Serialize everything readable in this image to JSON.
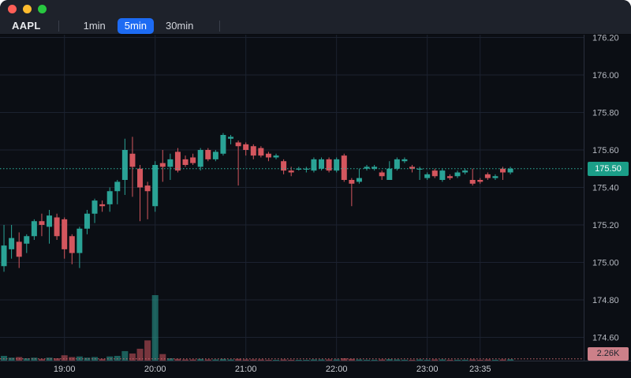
{
  "window": {
    "controls": [
      {
        "name": "close",
        "color": "#ff5f57"
      },
      {
        "name": "minimize",
        "color": "#febc2e"
      },
      {
        "name": "zoom",
        "color": "#28c840"
      }
    ]
  },
  "toolbar": {
    "symbol": "AAPL",
    "timeframes": [
      {
        "label": "1min",
        "active": false
      },
      {
        "label": "5min",
        "active": true
      },
      {
        "label": "30min",
        "active": false
      }
    ]
  },
  "colors": {
    "accent_blue": "#1d6bf3",
    "up": "#2aa396",
    "down": "#d4565e",
    "grid": "#1c2230",
    "axis_border": "#2a2f3d",
    "axis_text": "#b6bac2",
    "time_text": "#c8cbd1",
    "price_line": "#2fb3a0",
    "volume_line": "#c96a72",
    "price_badge_bg": "#1b9e88",
    "volume_badge_bg": "#cc8089",
    "header_bg": "#1e222b",
    "chart_bg": "#0b0e14"
  },
  "chart_data": {
    "type": "candlestick",
    "symbol": "AAPL",
    "interval": "5min",
    "title": "AAPL 5-minute candlestick chart with volume",
    "last_price": 175.5,
    "last_price_label": "175.50",
    "last_volume": 2260,
    "last_volume_label": "2.26K",
    "volume_max_estimate": 110000,
    "y_axis": {
      "side": "right",
      "ticks": [
        {
          "value": 176.2,
          "label": "176.20"
        },
        {
          "value": 176.0,
          "label": "176.00"
        },
        {
          "value": 175.8,
          "label": "175.80"
        },
        {
          "value": 175.6,
          "label": "175.60"
        },
        {
          "value": 175.4,
          "label": "175.40"
        },
        {
          "value": 175.2,
          "label": "175.20"
        },
        {
          "value": 175.0,
          "label": "175.00"
        },
        {
          "value": 174.8,
          "label": "174.80"
        },
        {
          "value": 174.6,
          "label": "174.60"
        }
      ]
    },
    "x_axis": {
      "ticks": [
        "19:00",
        "20:00",
        "21:00",
        "22:00",
        "23:00",
        "23:35"
      ]
    },
    "candles": [
      {
        "t": "18:15",
        "o": 175.02,
        "h": 175.04,
        "l": 174.96,
        "c": 174.97,
        "v": 4000
      },
      {
        "t": "18:20",
        "o": 174.98,
        "h": 175.2,
        "l": 174.95,
        "c": 175.09,
        "v": 8000
      },
      {
        "t": "18:25",
        "o": 175.07,
        "h": 175.2,
        "l": 175.02,
        "c": 175.13,
        "v": 5000
      },
      {
        "t": "18:30",
        "o": 175.11,
        "h": 175.16,
        "l": 174.97,
        "c": 175.03,
        "v": 6000
      },
      {
        "t": "18:35",
        "o": 175.1,
        "h": 175.15,
        "l": 175.05,
        "c": 175.14,
        "v": 4000
      },
      {
        "t": "18:40",
        "o": 175.14,
        "h": 175.23,
        "l": 175.12,
        "c": 175.22,
        "v": 5000
      },
      {
        "t": "18:45",
        "o": 175.22,
        "h": 175.26,
        "l": 175.14,
        "c": 175.2,
        "v": 3000
      },
      {
        "t": "18:50",
        "o": 175.19,
        "h": 175.28,
        "l": 175.1,
        "c": 175.25,
        "v": 5000
      },
      {
        "t": "18:55",
        "o": 175.24,
        "h": 175.26,
        "l": 175.12,
        "c": 175.14,
        "v": 4000
      },
      {
        "t": "19:00",
        "o": 175.23,
        "h": 175.24,
        "l": 175.02,
        "c": 175.07,
        "v": 9000
      },
      {
        "t": "19:05",
        "o": 175.14,
        "h": 175.15,
        "l": 174.99,
        "c": 175.05,
        "v": 6000
      },
      {
        "t": "19:10",
        "o": 175.05,
        "h": 175.19,
        "l": 174.97,
        "c": 175.18,
        "v": 7000
      },
      {
        "t": "19:15",
        "o": 175.18,
        "h": 175.28,
        "l": 175.15,
        "c": 175.26,
        "v": 5000
      },
      {
        "t": "19:20",
        "o": 175.26,
        "h": 175.34,
        "l": 175.21,
        "c": 175.33,
        "v": 6000
      },
      {
        "t": "19:25",
        "o": 175.31,
        "h": 175.33,
        "l": 175.27,
        "c": 175.3,
        "v": 3000
      },
      {
        "t": "19:30",
        "o": 175.31,
        "h": 175.4,
        "l": 175.27,
        "c": 175.38,
        "v": 7000
      },
      {
        "t": "19:35",
        "o": 175.38,
        "h": 175.44,
        "l": 175.31,
        "c": 175.43,
        "v": 8000
      },
      {
        "t": "19:40",
        "o": 175.44,
        "h": 175.66,
        "l": 175.36,
        "c": 175.6,
        "v": 16000
      },
      {
        "t": "19:45",
        "o": 175.58,
        "h": 175.67,
        "l": 175.35,
        "c": 175.51,
        "v": 12000
      },
      {
        "t": "19:50",
        "o": 175.5,
        "h": 175.52,
        "l": 175.22,
        "c": 175.4,
        "v": 20000
      },
      {
        "t": "19:55",
        "o": 175.41,
        "h": 175.43,
        "l": 175.23,
        "c": 175.38,
        "v": 34000
      },
      {
        "t": "20:00",
        "o": 175.3,
        "h": 175.54,
        "l": 175.27,
        "c": 175.52,
        "v": 110000
      },
      {
        "t": "20:05",
        "o": 175.53,
        "h": 175.6,
        "l": 175.43,
        "c": 175.51,
        "v": 11000
      },
      {
        "t": "20:10",
        "o": 175.51,
        "h": 175.58,
        "l": 175.44,
        "c": 175.55,
        "v": 4000
      },
      {
        "t": "20:15",
        "o": 175.59,
        "h": 175.61,
        "l": 175.48,
        "c": 175.49,
        "v": 3000
      },
      {
        "t": "20:20",
        "o": 175.55,
        "h": 175.57,
        "l": 175.51,
        "c": 175.52,
        "v": 2000
      },
      {
        "t": "20:25",
        "o": 175.56,
        "h": 175.58,
        "l": 175.52,
        "c": 175.53,
        "v": 2000
      },
      {
        "t": "20:30",
        "o": 175.51,
        "h": 175.61,
        "l": 175.49,
        "c": 175.6,
        "v": 3000
      },
      {
        "t": "20:35",
        "o": 175.6,
        "h": 175.61,
        "l": 175.54,
        "c": 175.55,
        "v": 2000
      },
      {
        "t": "20:40",
        "o": 175.55,
        "h": 175.6,
        "l": 175.54,
        "c": 175.59,
        "v": 2000
      },
      {
        "t": "20:45",
        "o": 175.58,
        "h": 175.69,
        "l": 175.57,
        "c": 175.68,
        "v": 3000
      },
      {
        "t": "20:50",
        "o": 175.66,
        "h": 175.68,
        "l": 175.63,
        "c": 175.67,
        "v": 2000
      },
      {
        "t": "20:55",
        "o": 175.64,
        "h": 175.65,
        "l": 175.41,
        "c": 175.62,
        "v": 3000
      },
      {
        "t": "21:00",
        "o": 175.63,
        "h": 175.64,
        "l": 175.57,
        "c": 175.6,
        "v": 2000
      },
      {
        "t": "21:05",
        "o": 175.62,
        "h": 175.63,
        "l": 175.55,
        "c": 175.57,
        "v": 2000
      },
      {
        "t": "21:10",
        "o": 175.61,
        "h": 175.62,
        "l": 175.56,
        "c": 175.57,
        "v": 2000
      },
      {
        "t": "21:15",
        "o": 175.58,
        "h": 175.59,
        "l": 175.54,
        "c": 175.56,
        "v": 1500
      },
      {
        "t": "21:20",
        "o": 175.56,
        "h": 175.58,
        "l": 175.55,
        "c": 175.57,
        "v": 1000
      },
      {
        "t": "21:25",
        "o": 175.54,
        "h": 175.55,
        "l": 175.47,
        "c": 175.49,
        "v": 2000
      },
      {
        "t": "21:30",
        "o": 175.49,
        "h": 175.51,
        "l": 175.46,
        "c": 175.48,
        "v": 1500
      },
      {
        "t": "21:35",
        "o": 175.5,
        "h": 175.51,
        "l": 175.49,
        "c": 175.5,
        "v": 1000
      },
      {
        "t": "21:40",
        "o": 175.5,
        "h": 175.51,
        "l": 175.48,
        "c": 175.5,
        "v": 1000
      },
      {
        "t": "21:45",
        "o": 175.49,
        "h": 175.56,
        "l": 175.48,
        "c": 175.55,
        "v": 2000
      },
      {
        "t": "21:50",
        "o": 175.5,
        "h": 175.56,
        "l": 175.49,
        "c": 175.55,
        "v": 2000
      },
      {
        "t": "21:55",
        "o": 175.55,
        "h": 175.56,
        "l": 175.48,
        "c": 175.49,
        "v": 2000
      },
      {
        "t": "22:00",
        "o": 175.49,
        "h": 175.56,
        "l": 175.48,
        "c": 175.55,
        "v": 2000
      },
      {
        "t": "22:05",
        "o": 175.57,
        "h": 175.58,
        "l": 175.43,
        "c": 175.44,
        "v": 4000
      },
      {
        "t": "22:10",
        "o": 175.44,
        "h": 175.45,
        "l": 175.3,
        "c": 175.42,
        "v": 3000
      },
      {
        "t": "22:15",
        "o": 175.43,
        "h": 175.5,
        "l": 175.42,
        "c": 175.45,
        "v": 2000
      },
      {
        "t": "22:20",
        "o": 175.5,
        "h": 175.52,
        "l": 175.49,
        "c": 175.51,
        "v": 1500
      },
      {
        "t": "22:25",
        "o": 175.5,
        "h": 175.52,
        "l": 175.49,
        "c": 175.51,
        "v": 1500
      },
      {
        "t": "22:30",
        "o": 175.48,
        "h": 175.49,
        "l": 175.44,
        "c": 175.46,
        "v": 2000
      },
      {
        "t": "22:35",
        "o": 175.44,
        "h": 175.54,
        "l": 175.44,
        "c": 175.5,
        "v": 2500
      },
      {
        "t": "22:40",
        "o": 175.5,
        "h": 175.56,
        "l": 175.49,
        "c": 175.55,
        "v": 2000
      },
      {
        "t": "22:45",
        "o": 175.54,
        "h": 175.56,
        "l": 175.53,
        "c": 175.55,
        "v": 1500
      },
      {
        "t": "22:50",
        "o": 175.51,
        "h": 175.52,
        "l": 175.48,
        "c": 175.5,
        "v": 1500
      },
      {
        "t": "22:55",
        "o": 175.5,
        "h": 175.51,
        "l": 175.44,
        "c": 175.5,
        "v": 2000
      },
      {
        "t": "23:00",
        "o": 175.45,
        "h": 175.48,
        "l": 175.44,
        "c": 175.47,
        "v": 1500
      },
      {
        "t": "23:05",
        "o": 175.49,
        "h": 175.5,
        "l": 175.45,
        "c": 175.46,
        "v": 2000
      },
      {
        "t": "23:10",
        "o": 175.44,
        "h": 175.5,
        "l": 175.43,
        "c": 175.49,
        "v": 2000
      },
      {
        "t": "23:15",
        "o": 175.46,
        "h": 175.47,
        "l": 175.44,
        "c": 175.45,
        "v": 1500
      },
      {
        "t": "23:20",
        "o": 175.46,
        "h": 175.49,
        "l": 175.45,
        "c": 175.48,
        "v": 1500
      },
      {
        "t": "23:25",
        "o": 175.48,
        "h": 175.5,
        "l": 175.47,
        "c": 175.49,
        "v": 1500
      },
      {
        "t": "23:30",
        "o": 175.44,
        "h": 175.5,
        "l": 175.41,
        "c": 175.42,
        "v": 2000
      },
      {
        "t": "23:35",
        "o": 175.44,
        "h": 175.45,
        "l": 175.42,
        "c": 175.43,
        "v": 1500
      },
      {
        "t": "23:40",
        "o": 175.47,
        "h": 175.48,
        "l": 175.44,
        "c": 175.45,
        "v": 2000
      },
      {
        "t": "23:45",
        "o": 175.45,
        "h": 175.47,
        "l": 175.44,
        "c": 175.46,
        "v": 1500
      },
      {
        "t": "23:50",
        "o": 175.5,
        "h": 175.51,
        "l": 175.44,
        "c": 175.48,
        "v": 2000
      },
      {
        "t": "23:55",
        "o": 175.48,
        "h": 175.51,
        "l": 175.47,
        "c": 175.5,
        "v": 2260
      }
    ]
  }
}
